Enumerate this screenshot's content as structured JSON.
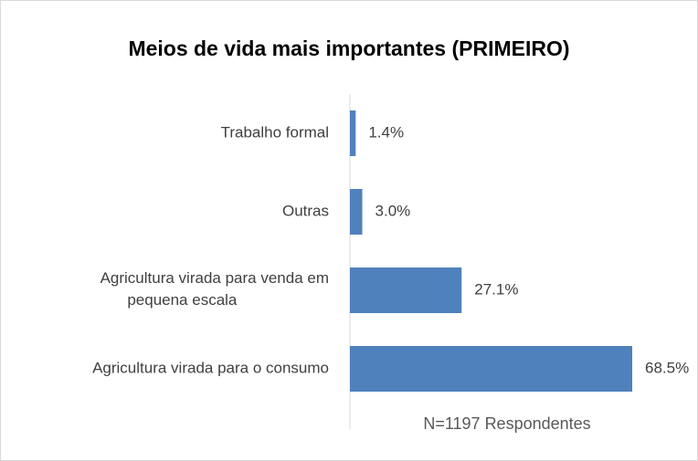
{
  "chart_data": {
    "type": "bar",
    "orientation": "horizontal",
    "title": "Meios de vida mais importantes (PRIMEIRO)",
    "categories": [
      "Trabalho formal",
      "Outras",
      "Agricultura virada para venda em pequena escala",
      "Agricultura virada para o consumo"
    ],
    "values": [
      1.4,
      3.0,
      27.1,
      68.5
    ],
    "value_labels": [
      "1.4%",
      "3.0%",
      "27.1%",
      "68.5%"
    ],
    "color": "#4f81bd",
    "annotation": "N=1197 Respondentes"
  }
}
